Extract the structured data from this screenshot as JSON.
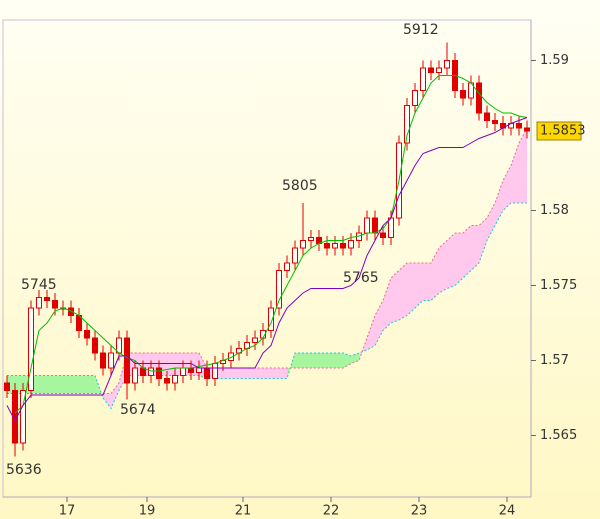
{
  "chart_data": {
    "type": "candlestick",
    "xlim": [
      0,
      66
    ],
    "xticks": [
      {
        "value": 8,
        "label": "17"
      },
      {
        "value": 18,
        "label": "19"
      },
      {
        "value": 30,
        "label": "21"
      },
      {
        "value": 41,
        "label": "22"
      },
      {
        "value": 52,
        "label": "23"
      },
      {
        "value": 63,
        "label": "24"
      }
    ],
    "ylim": [
      1.5609,
      1.5927
    ],
    "yticks": [
      1.565,
      1.57,
      1.575,
      1.58,
      1.59
    ],
    "grid": false,
    "up_color": "#ffffff",
    "down_color": "#e00000",
    "wick_color": "#e00000",
    "open": [
      1.5685,
      1.568,
      1.5645,
      1.568,
      1.5735,
      1.5742,
      1.574,
      1.5735,
      1.5735,
      1.573,
      1.572,
      1.5715,
      1.5705,
      1.5695,
      1.5705,
      1.5715,
      1.5685,
      1.5695,
      1.569,
      1.5695,
      1.5688,
      1.5685,
      1.569,
      1.5695,
      1.5692,
      1.5695,
      1.5688,
      1.5698,
      1.57,
      1.5705,
      1.5708,
      1.5712,
      1.5715,
      1.572,
      1.5735,
      1.576,
      1.5765,
      1.5775,
      1.578,
      1.5782,
      1.5778,
      1.5775,
      1.5778,
      1.5775,
      1.578,
      1.5785,
      1.5795,
      1.5785,
      1.5782,
      1.5795,
      1.5845,
      1.587,
      1.588,
      1.5895,
      1.5892,
      1.5895,
      1.59,
      1.588,
      1.5875,
      1.5885,
      1.5865,
      1.586,
      1.5858,
      1.5855,
      1.5858,
      1.5855
    ],
    "high": [
      1.569,
      1.5685,
      1.5685,
      1.574,
      1.5747,
      1.5747,
      1.5745,
      1.574,
      1.574,
      1.5735,
      1.5725,
      1.572,
      1.571,
      1.571,
      1.572,
      1.572,
      1.57,
      1.57,
      1.57,
      1.57,
      1.5693,
      1.5695,
      1.57,
      1.57,
      1.57,
      1.57,
      1.5703,
      1.5705,
      1.571,
      1.5713,
      1.5717,
      1.572,
      1.5725,
      1.574,
      1.5765,
      1.577,
      1.578,
      1.5805,
      1.5787,
      1.5787,
      1.5783,
      1.5783,
      1.5783,
      1.5785,
      1.579,
      1.58,
      1.58,
      1.579,
      1.58,
      1.585,
      1.5875,
      1.5885,
      1.59,
      1.59,
      1.59,
      1.5912,
      1.5905,
      1.5885,
      1.589,
      1.589,
      1.587,
      1.5865,
      1.5863,
      1.5863,
      1.5863,
      1.586
    ],
    "low": [
      1.5675,
      1.5636,
      1.564,
      1.5675,
      1.573,
      1.5735,
      1.573,
      1.573,
      1.5725,
      1.5715,
      1.571,
      1.57,
      1.569,
      1.569,
      1.57,
      1.5674,
      1.568,
      1.5685,
      1.5685,
      1.5683,
      1.568,
      1.568,
      1.5685,
      1.5687,
      1.5687,
      1.5683,
      1.5683,
      1.5693,
      1.5695,
      1.57,
      1.5703,
      1.5707,
      1.571,
      1.5715,
      1.573,
      1.5755,
      1.576,
      1.577,
      1.5775,
      1.5773,
      1.577,
      1.577,
      1.577,
      1.577,
      1.5775,
      1.578,
      1.578,
      1.5777,
      1.5777,
      1.579,
      1.584,
      1.5865,
      1.5875,
      1.5887,
      1.5887,
      1.589,
      1.5875,
      1.587,
      1.587,
      1.586,
      1.5855,
      1.5853,
      1.585,
      1.585,
      1.585,
      1.5848
    ],
    "close": [
      1.568,
      1.5645,
      1.568,
      1.5735,
      1.5742,
      1.574,
      1.5735,
      1.5735,
      1.573,
      1.572,
      1.5715,
      1.5705,
      1.5695,
      1.5705,
      1.5715,
      1.5685,
      1.5695,
      1.569,
      1.5695,
      1.5688,
      1.5685,
      1.569,
      1.5695,
      1.5692,
      1.5695,
      1.5688,
      1.5698,
      1.57,
      1.5705,
      1.5708,
      1.5712,
      1.5715,
      1.572,
      1.5735,
      1.576,
      1.5765,
      1.5775,
      1.578,
      1.5782,
      1.5778,
      1.5775,
      1.5778,
      1.5775,
      1.578,
      1.5785,
      1.5795,
      1.5785,
      1.5782,
      1.5795,
      1.5845,
      1.587,
      1.588,
      1.5895,
      1.5892,
      1.5895,
      1.59,
      1.588,
      1.5875,
      1.5885,
      1.5865,
      1.586,
      1.5858,
      1.5855,
      1.5858,
      1.5855,
      1.5853
    ],
    "series": [
      {
        "color": "#00c000",
        "values": [
          null,
          1.5665,
          1.567,
          1.5695,
          1.572,
          1.5725,
          1.5733,
          1.5735,
          1.5733,
          1.573,
          1.5725,
          1.572,
          1.5715,
          1.571,
          1.5705,
          1.5702,
          1.57,
          1.5695,
          1.5693,
          1.5693,
          1.5694,
          1.5695,
          1.5695,
          1.5695,
          1.5696,
          1.5697,
          1.5698,
          1.57,
          1.5702,
          1.5705,
          1.5708,
          1.571,
          1.5715,
          1.5725,
          1.574,
          1.575,
          1.576,
          1.577,
          1.5775,
          1.5778,
          1.578,
          1.578,
          1.578,
          1.5782,
          1.5783,
          1.5785,
          1.5785,
          1.5788,
          1.5795,
          1.582,
          1.585,
          1.5865,
          1.5875,
          1.5885,
          1.589,
          1.589,
          1.589,
          1.5888,
          1.5885,
          1.5878,
          1.5872,
          1.5868,
          1.5865,
          1.5865,
          1.5863,
          1.5862
        ]
      },
      {
        "color": "#8000c0",
        "values": [
          1.567,
          1.566,
          1.567,
          1.5677,
          1.5677,
          1.5677,
          1.5677,
          1.5677,
          1.5677,
          1.5677,
          1.5677,
          1.5677,
          1.5677,
          1.569,
          1.5703,
          1.5703,
          1.5698,
          1.5698,
          1.5698,
          1.5698,
          1.5698,
          1.5698,
          1.5698,
          1.5698,
          1.5695,
          1.5695,
          1.5695,
          1.5695,
          1.5695,
          1.5695,
          1.5695,
          1.5695,
          1.5705,
          1.571,
          1.5725,
          1.5735,
          1.574,
          1.5745,
          1.5748,
          1.5748,
          1.5748,
          1.5748,
          1.5748,
          1.575,
          1.5755,
          1.577,
          1.578,
          1.579,
          1.5795,
          1.581,
          1.582,
          1.583,
          1.5838,
          1.584,
          1.5842,
          1.5842,
          1.5842,
          1.5842,
          1.5845,
          1.5848,
          1.585,
          1.5852,
          1.5855,
          1.5858,
          1.586,
          1.5862
        ]
      }
    ],
    "cloud": {
      "above_color": "#a8f5a0",
      "below_color": "#ffc8ec",
      "span_a_color": "#20c8d0",
      "span_b_color": "#e07090",
      "span_a": [
        1.569,
        1.569,
        1.569,
        1.569,
        1.569,
        1.569,
        1.569,
        1.569,
        1.569,
        1.569,
        1.569,
        1.569,
        1.5675,
        1.5668,
        1.568,
        1.569,
        1.569,
        1.569,
        1.569,
        1.569,
        1.569,
        1.569,
        1.569,
        1.569,
        1.569,
        1.5688,
        1.5688,
        1.5688,
        1.5688,
        1.5688,
        1.5688,
        1.5688,
        1.5688,
        1.5688,
        1.5688,
        1.5688,
        1.5705,
        1.5705,
        1.5705,
        1.5705,
        1.5705,
        1.5705,
        1.5705,
        1.5703,
        1.5705,
        1.5707,
        1.571,
        1.572,
        1.5725,
        1.5727,
        1.573,
        1.5735,
        1.574,
        1.574,
        1.5745,
        1.5748,
        1.575,
        1.5755,
        1.576,
        1.5765,
        1.578,
        1.579,
        1.58,
        1.5805,
        1.5805,
        1.5805
      ],
      "span_b": [
        1.5678,
        1.5678,
        1.5678,
        1.5678,
        1.5678,
        1.5678,
        1.5678,
        1.5678,
        1.5678,
        1.5678,
        1.5678,
        1.5678,
        1.5678,
        1.5678,
        1.5685,
        1.5705,
        1.5705,
        1.5705,
        1.5705,
        1.5705,
        1.5705,
        1.5705,
        1.5705,
        1.5705,
        1.5705,
        1.5695,
        1.5695,
        1.5695,
        1.5695,
        1.5695,
        1.5695,
        1.5695,
        1.5695,
        1.5695,
        1.5695,
        1.5695,
        1.5695,
        1.5695,
        1.5695,
        1.5695,
        1.5695,
        1.5695,
        1.5695,
        1.5698,
        1.57,
        1.5715,
        1.573,
        1.574,
        1.5755,
        1.576,
        1.5765,
        1.5765,
        1.5765,
        1.5765,
        1.5775,
        1.578,
        1.5785,
        1.5785,
        1.579,
        1.579,
        1.5795,
        1.5805,
        1.582,
        1.583,
        1.5845,
        1.5855
      ]
    },
    "annotations": [
      "5636",
      "5745",
      "5674",
      "5805",
      "5765",
      "5912"
    ],
    "annotation_color": "#6030a0",
    "last_price_color": "#ffd700"
  }
}
